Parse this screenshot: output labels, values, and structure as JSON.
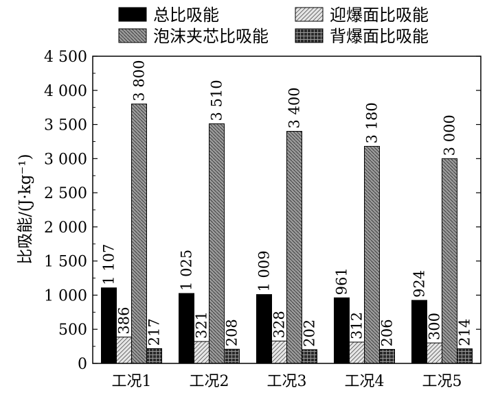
{
  "chart_data": {
    "type": "bar",
    "categories": [
      "工况1",
      "工况2",
      "工况3",
      "工况4",
      "工况5"
    ],
    "ylabel": "比吸能/(J·kg⁻¹)",
    "ylim": [
      0,
      4500
    ],
    "yticks": [
      0,
      500,
      1000,
      1500,
      2000,
      2500,
      3000,
      3500,
      4000,
      4500
    ],
    "ytick_labels": [
      "0",
      "500",
      "1 000",
      "1 500",
      "2 000",
      "2 500",
      "3 000",
      "3 500",
      "4 000",
      "4 500"
    ],
    "grid": false,
    "legend_position": "top",
    "series": [
      {
        "name": "总比吸能",
        "values": [
          1107,
          1025,
          1009,
          961,
          924
        ],
        "labels": [
          "1 107",
          "1 025",
          "1 009",
          "961",
          "924"
        ],
        "pattern": "solid",
        "color": "#000000"
      },
      {
        "name": "迎爆面比吸能",
        "values": [
          386,
          321,
          328,
          312,
          300
        ],
        "labels": [
          "386",
          "321",
          "328",
          "312",
          "300"
        ],
        "pattern": "light-hatch",
        "color": "#d9d9d9"
      },
      {
        "name": "泡沫夹芯比吸能",
        "values": [
          3800,
          3510,
          3400,
          3180,
          3000
        ],
        "labels": [
          "3 800",
          "3 510",
          "3 400",
          "3 180",
          "3 000"
        ],
        "pattern": "dense-hatch",
        "color": "#8c8c8c"
      },
      {
        "name": "背爆面比吸能",
        "values": [
          217,
          208,
          202,
          206,
          214
        ],
        "labels": [
          "217",
          "208",
          "202",
          "206",
          "214"
        ],
        "pattern": "grid",
        "color": "#3a3a3a"
      }
    ]
  }
}
